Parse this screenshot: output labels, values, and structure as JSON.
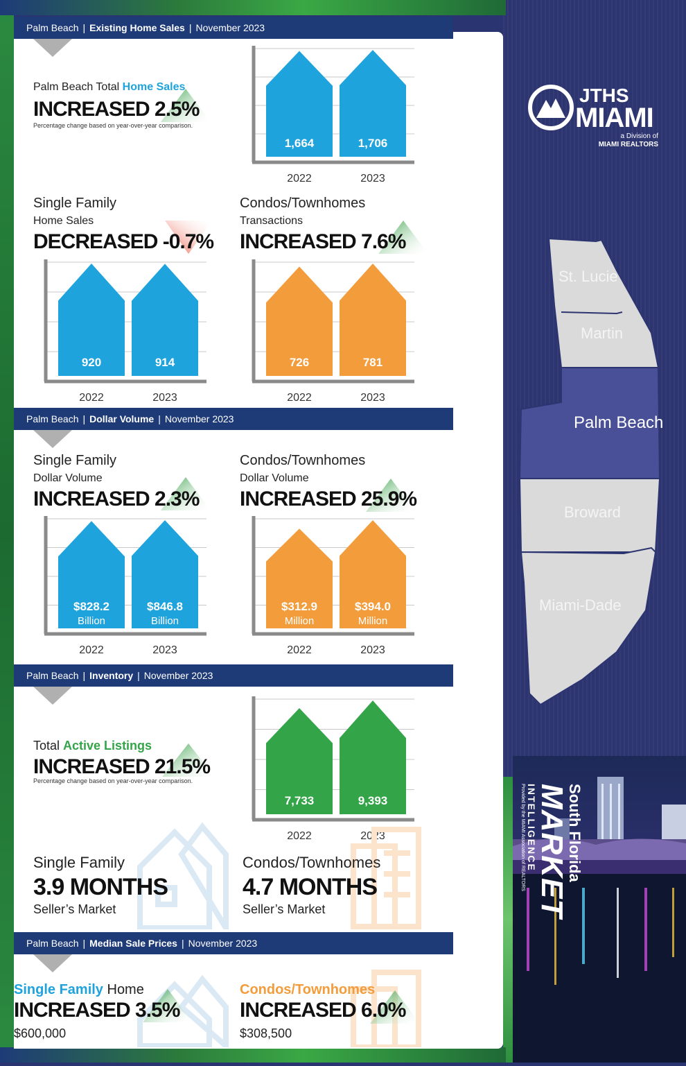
{
  "sections": {
    "existing": {
      "area": "Palm Beach",
      "title": "Existing Home Sales",
      "date": "November 2023"
    },
    "dollar": {
      "area": "Palm Beach",
      "title": "Dollar Volume",
      "date": "November 2023"
    },
    "inventory": {
      "area": "Palm Beach",
      "title": "Inventory",
      "date": "November 2023"
    },
    "median": {
      "area": "Palm Beach",
      "title": "Median Sale Prices",
      "date": "November 2023"
    }
  },
  "total_sales": {
    "label_prefix": "Palm Beach Total ",
    "label_highlight": "Home Sales",
    "headline": "INCREASED 2.5%",
    "note": "Percentage change based on year-over-year comparison."
  },
  "sf_sales": {
    "title": "Single Family",
    "label": "Home Sales",
    "headline": "DECREASED -0.7%"
  },
  "condo_sales": {
    "title": "Condos/Townhomes",
    "label": "Transactions",
    "headline": "INCREASED 7.6%"
  },
  "sf_volume": {
    "title": "Single Family",
    "label": "Dollar Volume",
    "headline": "INCREASED 2.3%"
  },
  "condo_volume": {
    "title": "Condos/Townhomes",
    "label": "Dollar Volume",
    "headline": "INCREASED 25.9%"
  },
  "inventory": {
    "label_prefix": "Total ",
    "label_highlight": "Active Listings",
    "headline": "INCREASED 21.5%",
    "note": "Percentage change based on year-over-year comparison.",
    "sf_title": "Single Family",
    "sf_months": "3.9 MONTHS",
    "sf_market": "Seller’s Market",
    "condo_title": "Condos/Townhomes",
    "condo_months": "4.7 MONTHS",
    "condo_market": "Seller’s Market"
  },
  "median": {
    "sf_title": "Single Family",
    "sf_suffix": " Home",
    "sf_headline": "INCREASED 3.5%",
    "sf_price": "$600,000",
    "condo_title": "Condos/Townhomes",
    "condo_headline": "INCREASED 6.0%",
    "condo_price": "$308,500"
  },
  "brand": {
    "line1": "JTHS",
    "line2": "MIAMI",
    "line3": "a Division of",
    "line4": "MIAMI REALTORS"
  },
  "map": {
    "counties": [
      "St. Lucie",
      "Martin",
      "Palm Beach",
      "Broward",
      "Miami-Dade"
    ]
  },
  "side_title": {
    "line1": "South Florida",
    "line2": "MARKET",
    "line3": "INTELLIGENCE",
    "line4": "Provided by the MIAMI Association of REALTORS"
  },
  "colors": {
    "blue": "#1fa3dc",
    "orange": "#f39c3b",
    "green": "#34a449",
    "navy": "#1e3b78"
  },
  "chart_data": [
    {
      "type": "bar",
      "id": "total_sales",
      "categories": [
        "2022",
        "2023"
      ],
      "values": [
        1664,
        1706
      ],
      "labels": [
        "1,664",
        "1,706"
      ],
      "color": "#1fa3dc"
    },
    {
      "type": "bar",
      "id": "sf_sales",
      "categories": [
        "2022",
        "2023"
      ],
      "values": [
        920,
        914
      ],
      "labels": [
        "920",
        "914"
      ],
      "color": "#1fa3dc"
    },
    {
      "type": "bar",
      "id": "condo_sales",
      "categories": [
        "2022",
        "2023"
      ],
      "values": [
        726,
        781
      ],
      "labels": [
        "726",
        "781"
      ],
      "color": "#f39c3b"
    },
    {
      "type": "bar",
      "id": "sf_volume",
      "categories": [
        "2022",
        "2023"
      ],
      "values": [
        828.2,
        846.8
      ],
      "labels": [
        "$828.2",
        "$846.8"
      ],
      "units": [
        "Billion",
        "Billion"
      ],
      "color": "#1fa3dc"
    },
    {
      "type": "bar",
      "id": "condo_volume",
      "categories": [
        "2022",
        "2023"
      ],
      "values": [
        312.9,
        394.0
      ],
      "labels": [
        "$312.9",
        "$394.0"
      ],
      "units": [
        "Million",
        "Million"
      ],
      "color": "#f39c3b"
    },
    {
      "type": "bar",
      "id": "inventory",
      "categories": [
        "2022",
        "2023"
      ],
      "values": [
        7733,
        9393
      ],
      "labels": [
        "7,733",
        "9,393"
      ],
      "color": "#34a449"
    }
  ]
}
